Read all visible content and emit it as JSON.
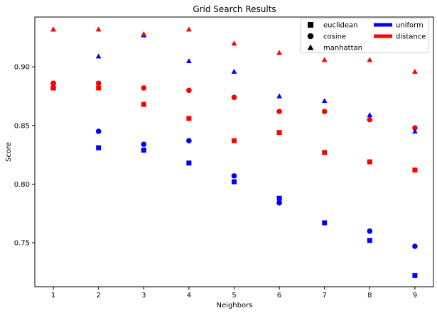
{
  "chart_data": {
    "type": "scatter",
    "title": "Grid Search Results",
    "xlabel": "Neighbors",
    "ylabel": "Score",
    "xlim": [
      0.59,
      9.41
    ],
    "ylim": [
      0.7125,
      0.9425
    ],
    "x_ticks": [
      1,
      2,
      3,
      4,
      5,
      6,
      7,
      8,
      9
    ],
    "y_ticks": [
      0.75,
      0.8,
      0.85,
      0.9
    ],
    "y_tick_labels": [
      "0.75",
      "0.80",
      "0.85",
      "0.90"
    ],
    "grid": false,
    "legend_position": "top-right",
    "marker_legend": [
      {
        "label": "euclidean",
        "marker": "square"
      },
      {
        "label": "cosine",
        "marker": "circle"
      },
      {
        "label": "manhattan",
        "marker": "triangle"
      }
    ],
    "color_legend": [
      {
        "label": "uniform",
        "color": "#0000ff"
      },
      {
        "label": "distance",
        "color": "#ff0000"
      }
    ],
    "series": [
      {
        "metric": "euclidean",
        "weights": "uniform",
        "marker": "square",
        "color": "#0000ff",
        "x": [
          1,
          2,
          3,
          4,
          5,
          6,
          7,
          8,
          9
        ],
        "values": [
          0.882,
          0.831,
          0.829,
          0.818,
          0.802,
          0.788,
          0.767,
          0.752,
          0.722
        ]
      },
      {
        "metric": "euclidean",
        "weights": "distance",
        "marker": "square",
        "color": "#ff0000",
        "x": [
          1,
          2,
          3,
          4,
          5,
          6,
          7,
          8,
          9
        ],
        "values": [
          0.882,
          0.882,
          0.868,
          0.856,
          0.837,
          0.844,
          0.827,
          0.819,
          0.812
        ]
      },
      {
        "metric": "cosine",
        "weights": "uniform",
        "marker": "circle",
        "color": "#0000ff",
        "x": [
          1,
          2,
          3,
          4,
          5,
          6,
          7,
          8,
          9
        ],
        "values": [
          0.886,
          0.845,
          0.834,
          0.837,
          0.807,
          0.784,
          null,
          0.76,
          0.747
        ]
      },
      {
        "metric": "cosine",
        "weights": "distance",
        "marker": "circle",
        "color": "#ff0000",
        "x": [
          1,
          2,
          3,
          4,
          5,
          6,
          7,
          8,
          9
        ],
        "values": [
          0.886,
          0.886,
          0.882,
          0.88,
          0.874,
          0.862,
          0.862,
          0.855,
          0.848
        ]
      },
      {
        "metric": "manhattan",
        "weights": "uniform",
        "marker": "triangle",
        "color": "#0000ff",
        "x": [
          1,
          2,
          3,
          4,
          5,
          6,
          7,
          8,
          9
        ],
        "values": [
          0.932,
          0.909,
          0.927,
          0.905,
          0.896,
          0.875,
          0.871,
          0.859,
          0.845
        ]
      },
      {
        "metric": "manhattan",
        "weights": "distance",
        "marker": "triangle",
        "color": "#ff0000",
        "x": [
          1,
          2,
          3,
          4,
          5,
          6,
          7,
          8,
          9
        ],
        "values": [
          0.932,
          0.932,
          0.928,
          0.932,
          0.92,
          0.912,
          0.906,
          0.906,
          0.896
        ]
      }
    ]
  }
}
